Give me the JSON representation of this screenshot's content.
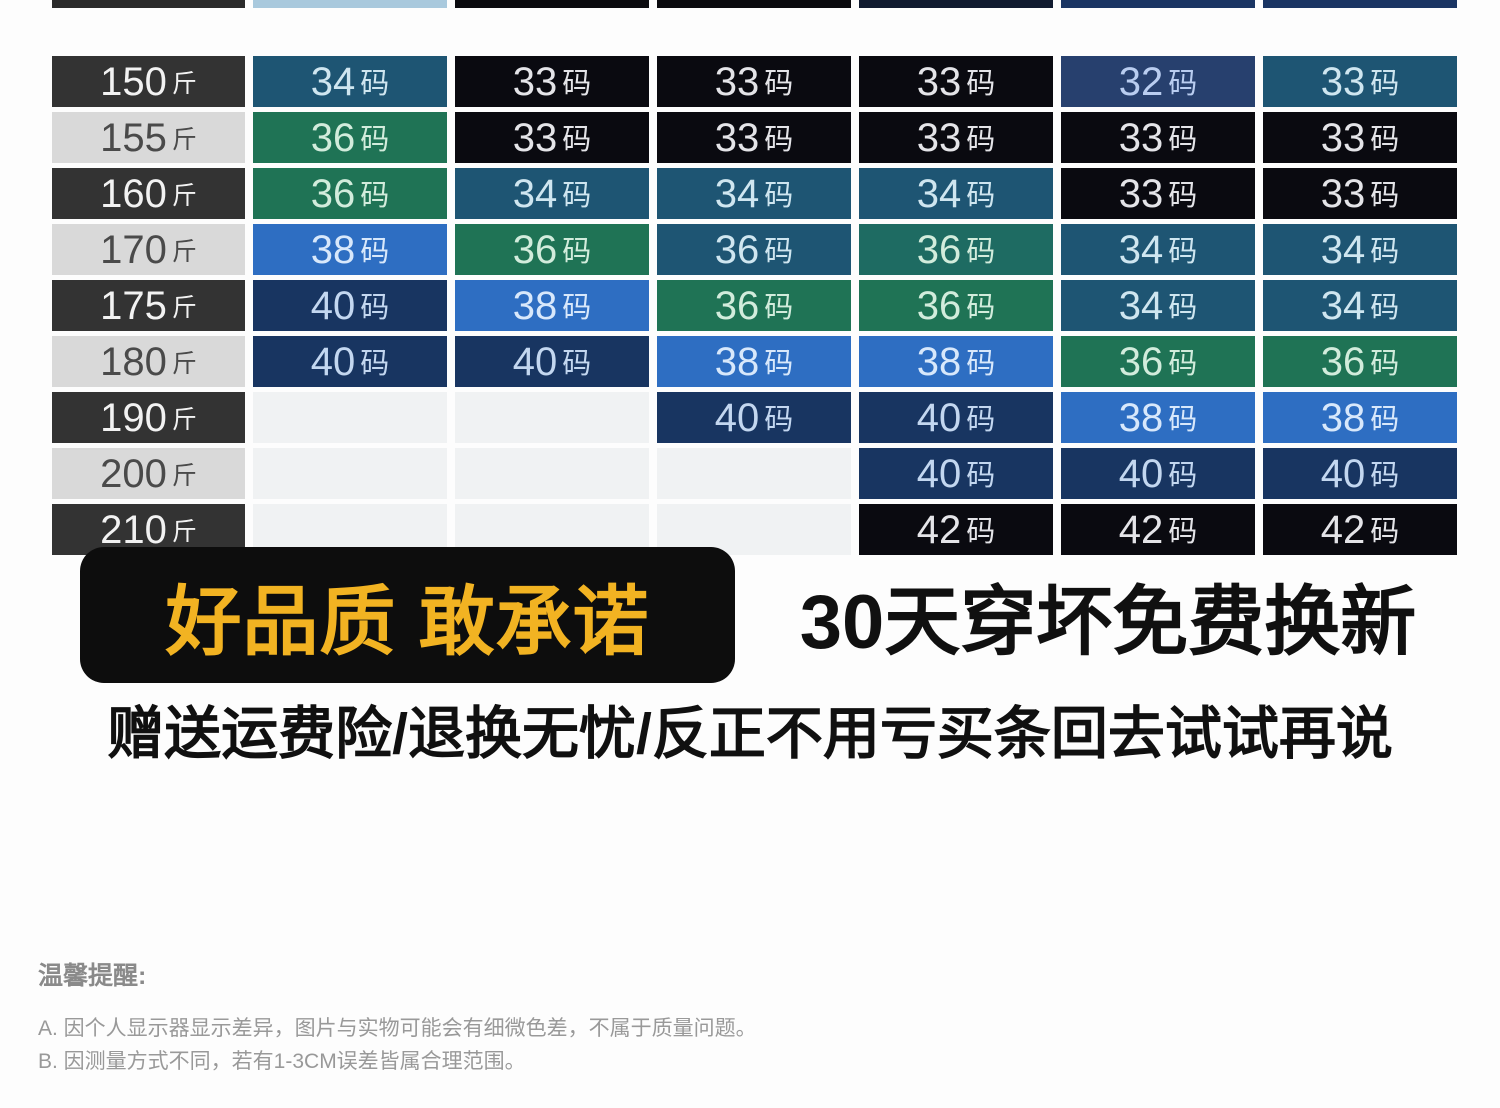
{
  "palette": {
    "black": {
      "bg": "#0a0a10",
      "fg": "#e4e4e8"
    },
    "navy": {
      "bg": "#183561",
      "fg": "#c3d7f0"
    },
    "navy_light": {
      "bg": "#27406e",
      "fg": "#b9cdf0"
    },
    "steel": {
      "bg": "#1e5573",
      "fg": "#cfe6f0"
    },
    "teal_green": {
      "bg": "#1e6b62",
      "fg": "#d2ecdc"
    },
    "green": {
      "bg": "#1f7355",
      "fg": "#d2ecdc"
    },
    "blue": {
      "bg": "#2e6ec2",
      "fg": "#d8e8fb"
    },
    "label_dark": {
      "bg": "#333333",
      "fg": "#f2f2f2"
    },
    "label_light": {
      "bg": "#d9d9d9",
      "fg": "#4a4a4a"
    },
    "empty_bg": "#f0f2f3"
  },
  "table": {
    "weight_unit": "斤",
    "size_unit": "码",
    "top_sliver_colors": [
      "#2b2b2b",
      "#a9c9dd",
      "#0b0b0f",
      "#0b0b0f",
      "#111b30",
      "#1a3563",
      "#1a3563"
    ],
    "rows": [
      {
        "weight": "150",
        "shade": "label_dark",
        "cells": [
          {
            "size": "34",
            "color": "steel"
          },
          {
            "size": "33",
            "color": "black"
          },
          {
            "size": "33",
            "color": "black"
          },
          {
            "size": "33",
            "color": "black"
          },
          {
            "size": "32",
            "color": "navy_light"
          },
          {
            "size": "33",
            "color": "steel"
          }
        ]
      },
      {
        "weight": "155",
        "shade": "label_light",
        "cells": [
          {
            "size": "36",
            "color": "green"
          },
          {
            "size": "33",
            "color": "black"
          },
          {
            "size": "33",
            "color": "black"
          },
          {
            "size": "33",
            "color": "black"
          },
          {
            "size": "33",
            "color": "black"
          },
          {
            "size": "33",
            "color": "black"
          }
        ]
      },
      {
        "weight": "160",
        "shade": "label_dark",
        "cells": [
          {
            "size": "36",
            "color": "green"
          },
          {
            "size": "34",
            "color": "steel"
          },
          {
            "size": "34",
            "color": "steel"
          },
          {
            "size": "34",
            "color": "steel"
          },
          {
            "size": "33",
            "color": "black"
          },
          {
            "size": "33",
            "color": "black"
          }
        ]
      },
      {
        "weight": "170",
        "shade": "label_light",
        "cells": [
          {
            "size": "38",
            "color": "blue"
          },
          {
            "size": "36",
            "color": "green"
          },
          {
            "size": "36",
            "color": "steel"
          },
          {
            "size": "36",
            "color": "teal_green"
          },
          {
            "size": "34",
            "color": "steel"
          },
          {
            "size": "34",
            "color": "steel"
          }
        ]
      },
      {
        "weight": "175",
        "shade": "label_dark",
        "cells": [
          {
            "size": "40",
            "color": "navy"
          },
          {
            "size": "38",
            "color": "blue"
          },
          {
            "size": "36",
            "color": "green"
          },
          {
            "size": "36",
            "color": "green"
          },
          {
            "size": "34",
            "color": "steel"
          },
          {
            "size": "34",
            "color": "steel"
          }
        ]
      },
      {
        "weight": "180",
        "shade": "label_light",
        "cells": [
          {
            "size": "40",
            "color": "navy"
          },
          {
            "size": "40",
            "color": "navy"
          },
          {
            "size": "38",
            "color": "blue"
          },
          {
            "size": "38",
            "color": "blue"
          },
          {
            "size": "36",
            "color": "green"
          },
          {
            "size": "36",
            "color": "green"
          }
        ]
      },
      {
        "weight": "190",
        "shade": "label_dark",
        "cells": [
          {
            "size": "",
            "color": ""
          },
          {
            "size": "",
            "color": ""
          },
          {
            "size": "40",
            "color": "navy"
          },
          {
            "size": "40",
            "color": "navy"
          },
          {
            "size": "38",
            "color": "blue"
          },
          {
            "size": "38",
            "color": "blue"
          }
        ]
      },
      {
        "weight": "200",
        "shade": "label_light",
        "cells": [
          {
            "size": "",
            "color": ""
          },
          {
            "size": "",
            "color": ""
          },
          {
            "size": "",
            "color": ""
          },
          {
            "size": "40",
            "color": "navy"
          },
          {
            "size": "40",
            "color": "navy"
          },
          {
            "size": "40",
            "color": "navy"
          }
        ]
      },
      {
        "weight": "210",
        "shade": "label_dark",
        "cells": [
          {
            "size": "",
            "color": ""
          },
          {
            "size": "",
            "color": ""
          },
          {
            "size": "",
            "color": ""
          },
          {
            "size": "42",
            "color": "black"
          },
          {
            "size": "42",
            "color": "black"
          },
          {
            "size": "42",
            "color": "black"
          }
        ]
      }
    ]
  },
  "promo": {
    "badge_text": "好品质 敢承诺",
    "badge_bg": "#0d0d0d",
    "badge_text_color": "#f2b322",
    "headline": "30天穿坏免费换新",
    "subline": "赠送运费险/退换无忧/反正不用亏买条回去试试再说"
  },
  "reminder": {
    "title": "温馨提醒:",
    "items": [
      "A. 因个人显示器显示差异，图片与实物可能会有细微色差，不属于质量问题。",
      "B. 因测量方式不同，若有1-3CM误差皆属合理范围。"
    ]
  }
}
